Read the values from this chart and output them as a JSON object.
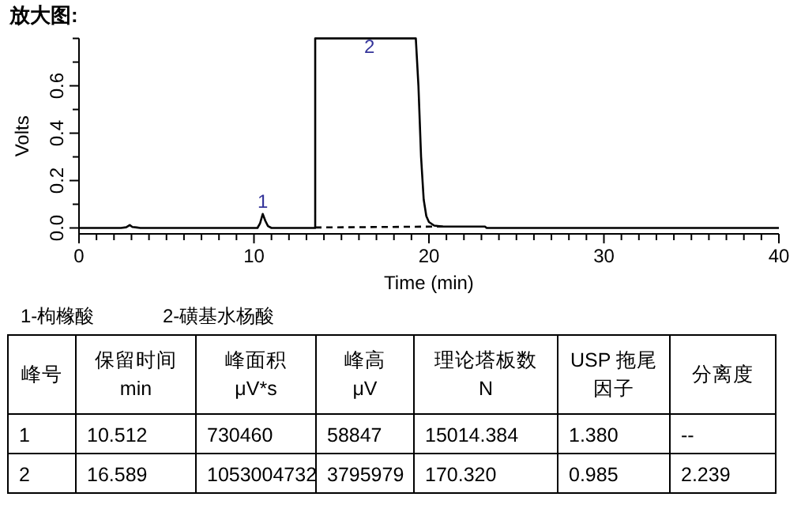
{
  "chart_data": [
    {
      "type": "line",
      "title": "放大图:",
      "xlabel": "Time (min)",
      "ylabel": "Volts",
      "xlim": [
        0,
        40
      ],
      "ylim": [
        -0.025,
        0.8
      ],
      "xticks": [
        0,
        {
          "value": 1,
          "label": null
        },
        {
          "value": 2,
          "label": null
        },
        {
          "value": 3,
          "label": null
        },
        {
          "value": 4,
          "label": null
        },
        {
          "value": 5,
          "label": null
        },
        {
          "value": 6,
          "label": null
        },
        {
          "value": 7,
          "label": null
        },
        {
          "value": 8,
          "label": null
        },
        {
          "value": 9,
          "label": null
        },
        10,
        {
          "value": 11,
          "label": null
        },
        {
          "value": 12,
          "label": null
        },
        {
          "value": 13,
          "label": null
        },
        {
          "value": 14,
          "label": null
        },
        {
          "value": 15,
          "label": null
        },
        {
          "value": 16,
          "label": null
        },
        {
          "value": 17,
          "label": null
        },
        {
          "value": 18,
          "label": null
        },
        {
          "value": 19,
          "label": null
        },
        20,
        {
          "value": 21,
          "label": null
        },
        {
          "value": 22,
          "label": null
        },
        {
          "value": 23,
          "label": null
        },
        {
          "value": 24,
          "label": null
        },
        {
          "value": 25,
          "label": null
        },
        {
          "value": 26,
          "label": null
        },
        {
          "value": 27,
          "label": null
        },
        {
          "value": 28,
          "label": null
        },
        {
          "value": 29,
          "label": null
        },
        30,
        {
          "value": 31,
          "label": null
        },
        {
          "value": 32,
          "label": null
        },
        {
          "value": 33,
          "label": null
        },
        {
          "value": 34,
          "label": null
        },
        {
          "value": 35,
          "label": null
        },
        {
          "value": 36,
          "label": null
        },
        {
          "value": 37,
          "label": null
        },
        {
          "value": 38,
          "label": null
        },
        {
          "value": 39,
          "label": null
        },
        40
      ],
      "yticks": [
        {
          "value": 0,
          "label": "0.0"
        },
        {
          "value": 0.1,
          "label": null
        },
        {
          "value": 0.2,
          "label": "0.2"
        },
        {
          "value": 0.3,
          "label": null
        },
        {
          "value": 0.4,
          "label": "0.4"
        },
        {
          "value": 0.5,
          "label": null
        },
        {
          "value": 0.6,
          "label": "0.6"
        },
        {
          "value": 0.7,
          "label": null
        },
        {
          "value": 0.8,
          "label": null
        }
      ],
      "grid": false,
      "marker": "none",
      "series": [
        {
          "color": "#000000",
          "line_style": "solid",
          "x": [
            0,
            2.4,
            2.7,
            2.9,
            3.05,
            3.3,
            3.5,
            10.2,
            10.35,
            10.5,
            10.65,
            10.8,
            11,
            13.5,
            13.5,
            19.25,
            19.4,
            19.55,
            19.7,
            19.85,
            20.0,
            20.3,
            20.8,
            23.2,
            23.3,
            40
          ],
          "values": [
            0,
            0,
            0.003,
            0.012,
            0.004,
            0.002,
            0,
            0,
            0.02,
            0.059,
            0.03,
            0.008,
            0,
            0,
            0.8,
            0.8,
            0.6,
            0.3,
            0.12,
            0.05,
            0.025,
            0.01,
            0.006,
            0.006,
            0,
            0
          ]
        },
        {
          "color": "#000000",
          "line_style": "dashed",
          "x": [
            13.5,
            20.8
          ],
          "values": [
            0.002,
            0.006
          ]
        }
      ],
      "annotations": [
        {
          "text": "1",
          "x": 10.5,
          "y": 0.059
        },
        {
          "text": "2",
          "x": 16.6,
          "y": 0.8
        }
      ]
    },
    {
      "type": "other",
      "annotations": [
        "1-枸橼酸",
        "2-磺基水杨酸",
        "峰号",
        "保留时间\nmin",
        "峰面积\nμV*s",
        "峰高\nμV",
        "理论塔板数\nN",
        "USP 拖尾因子",
        "分离度",
        "1",
        "10.512",
        "730460",
        "58847",
        "15014.384",
        "1.380",
        "--",
        "2",
        "16.589",
        "1053004732",
        "3795979",
        "170.320",
        "0.985",
        "2.239"
      ]
    }
  ]
}
